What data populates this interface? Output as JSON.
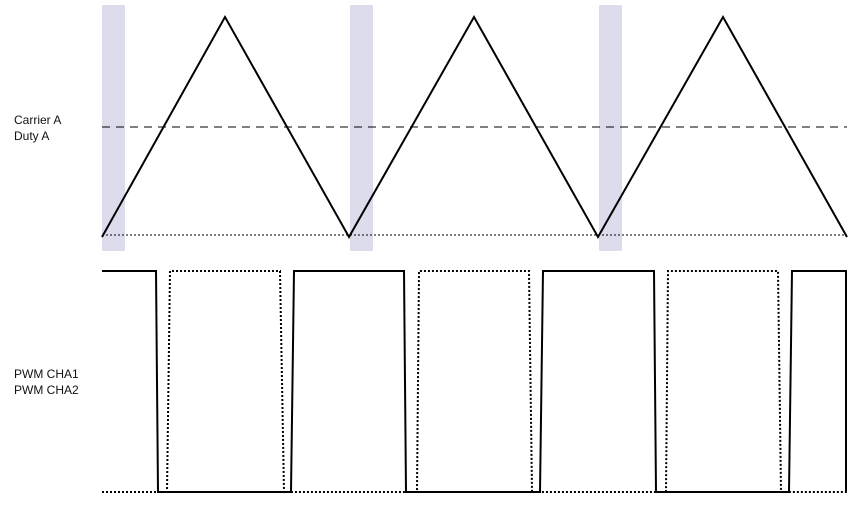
{
  "labels": {
    "carrier": "Carrier A",
    "duty": "Duty A",
    "pwm_cha1": "PWM CHA1",
    "pwm_cha2": "PWM CHA2"
  },
  "colors": {
    "line": "#000000",
    "highlight": "#dcdcec",
    "background": "#ffffff"
  },
  "chart_data": {
    "type": "line",
    "carrier_periods": 3,
    "duty_level_fraction": 0.5,
    "pwm_cha1_transitions_fraction_of_period": [
      0.22,
      0.78
    ],
    "highlight_windows_fraction_of_period": [
      0.0,
      0.1
    ]
  }
}
